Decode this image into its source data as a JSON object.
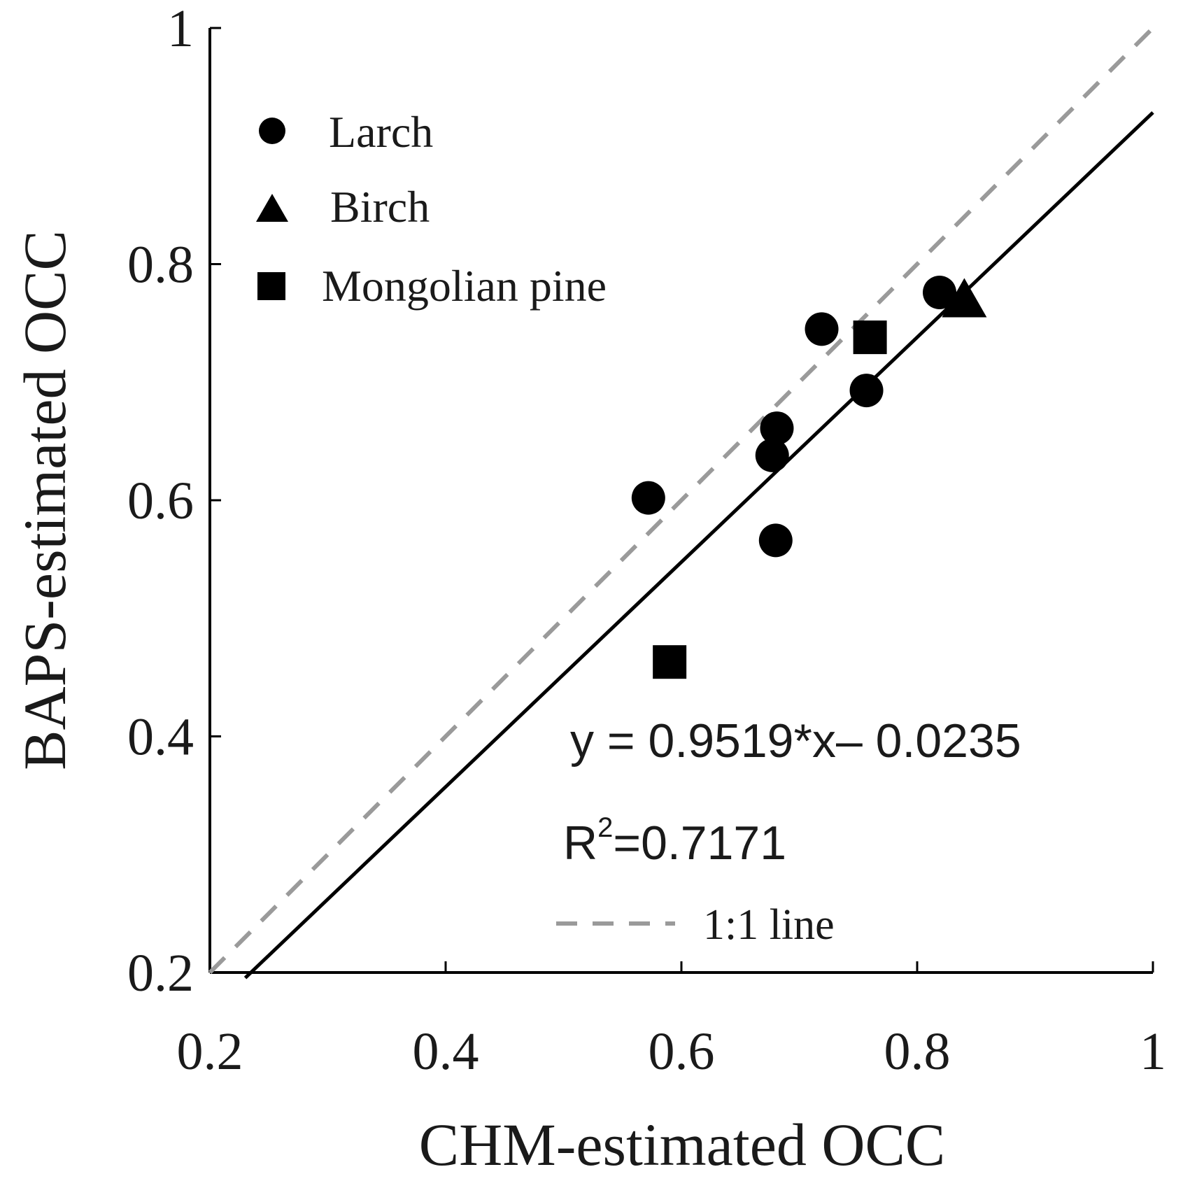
{
  "chart_data": {
    "type": "scatter",
    "xlabel": "CHM-estimated OCC",
    "ylabel": "BAPS-estimated OCC",
    "xlim": [
      0.2,
      1.0
    ],
    "ylim": [
      0.2,
      1.0
    ],
    "x_ticks": [
      0.2,
      0.4,
      0.6,
      0.8,
      1.0
    ],
    "y_ticks": [
      0.2,
      0.4,
      0.6,
      0.8,
      1.0
    ],
    "x_tick_labels": [
      "0.2",
      "0.4",
      "0.6",
      "0.8",
      "1"
    ],
    "y_tick_labels": [
      "0.2",
      "0.4",
      "0.6",
      "0.8",
      "1"
    ],
    "grid": false,
    "legend_position": "top-left",
    "series": [
      {
        "name": "Larch",
        "marker": "circle",
        "points": [
          {
            "x": 0.572,
            "y": 0.602
          },
          {
            "x": 0.68,
            "y": 0.566
          },
          {
            "x": 0.677,
            "y": 0.638
          },
          {
            "x": 0.681,
            "y": 0.661
          },
          {
            "x": 0.719,
            "y": 0.745
          },
          {
            "x": 0.757,
            "y": 0.693
          },
          {
            "x": 0.819,
            "y": 0.776
          }
        ]
      },
      {
        "name": "Birch",
        "marker": "triangle",
        "points": [
          {
            "x": 0.84,
            "y": 0.768
          }
        ]
      },
      {
        "name": "Mongolian pine",
        "marker": "square",
        "points": [
          {
            "x": 0.59,
            "y": 0.463
          },
          {
            "x": 0.76,
            "y": 0.738
          }
        ]
      }
    ],
    "fit_line": {
      "slope": 0.9519,
      "intercept": -0.0235,
      "x_range": [
        0.23,
        1.0
      ],
      "style": "solid",
      "color": "#000000"
    },
    "identity_line": {
      "label": "1:1 line",
      "x_range": [
        0.2,
        1.0
      ],
      "style": "dashed",
      "color": "#9a9a9a"
    },
    "annotations": {
      "equation": "y = 0.9519*x– 0.0235",
      "r2_prefix": "R",
      "r2_exponent": "2",
      "r2_value": "=0.7171"
    }
  }
}
